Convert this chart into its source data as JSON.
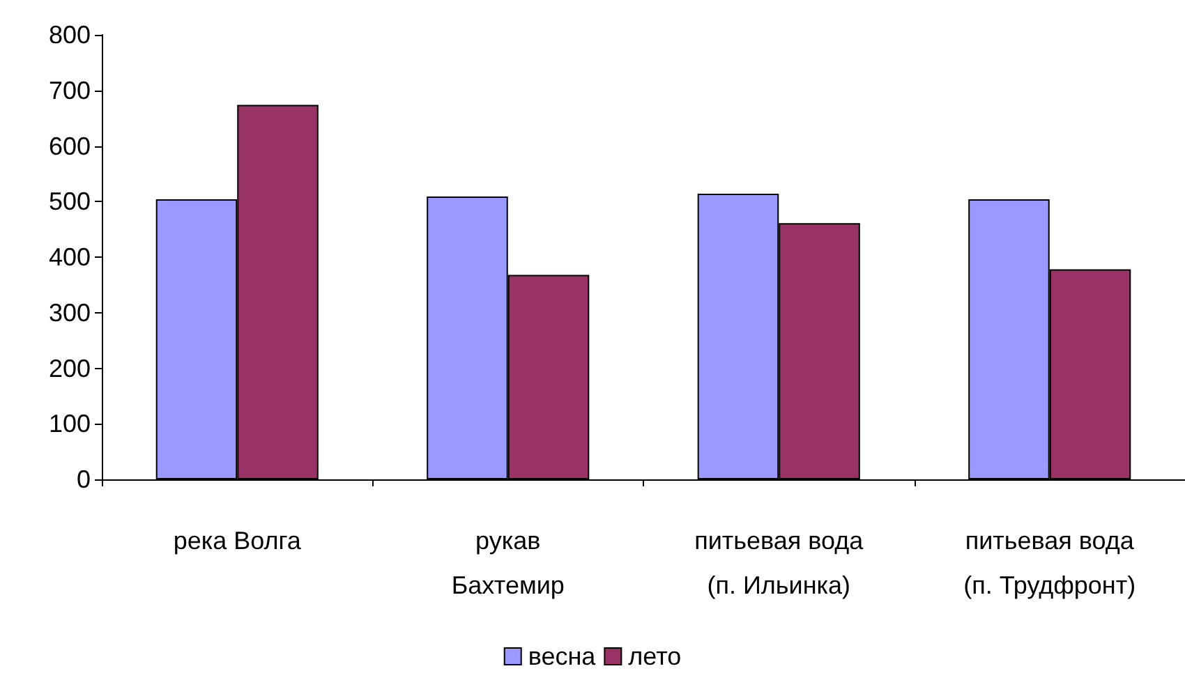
{
  "chart_data": {
    "type": "bar",
    "categories": [
      "река Волга",
      "рукав\nБахтемир",
      "питьевая вода\n(п. Ильинка)",
      "питьевая вода\n(п. Трудфронт)"
    ],
    "series": [
      {
        "name": "весна",
        "color": "#9999ff",
        "values": [
          504,
          509,
          514,
          504
        ]
      },
      {
        "name": "лето",
        "color": "#993366",
        "values": [
          674,
          368,
          461,
          378
        ]
      }
    ],
    "ylim": [
      0,
      800
    ],
    "yticks": [
      0,
      100,
      200,
      300,
      400,
      500,
      600,
      700,
      800
    ],
    "grid": false,
    "legend": "bottom"
  }
}
